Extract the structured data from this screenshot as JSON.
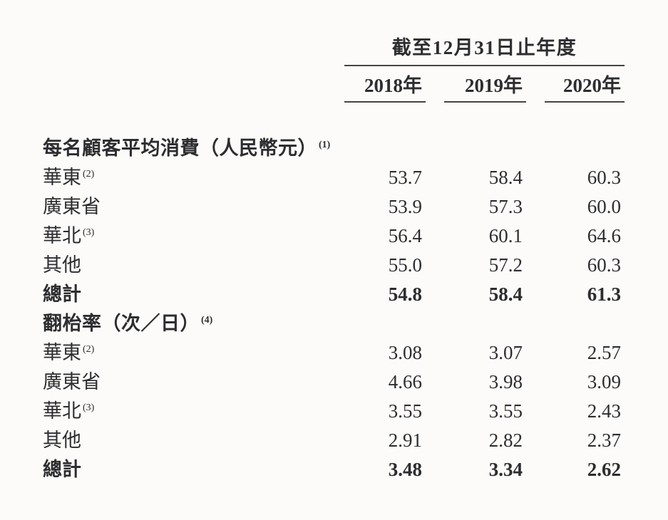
{
  "page": {
    "background": "#fcfbf9",
    "text_color": "#2d2d30",
    "rule_color": "#454548"
  },
  "table": {
    "period_header": "截至12月31日止年度",
    "year_columns": [
      "2018年",
      "2019年",
      "2020年"
    ],
    "rows": [
      {
        "label": "每名顧客平均消費（人民幣元）",
        "footnote": "(1)",
        "style": "section",
        "values": [
          "",
          "",
          ""
        ]
      },
      {
        "label": "華東",
        "footnote": "(2)",
        "style": "data",
        "values": [
          "53.7",
          "58.4",
          "60.3"
        ]
      },
      {
        "label": "廣東省",
        "footnote": "",
        "style": "data",
        "values": [
          "53.9",
          "57.3",
          "60.0"
        ]
      },
      {
        "label": "華北",
        "footnote": "(3)",
        "style": "data",
        "values": [
          "56.4",
          "60.1",
          "64.6"
        ]
      },
      {
        "label": "其他",
        "footnote": "",
        "style": "data",
        "values": [
          "55.0",
          "57.2",
          "60.3"
        ]
      },
      {
        "label": "總計",
        "footnote": "",
        "style": "total",
        "values": [
          "54.8",
          "58.4",
          "61.3"
        ]
      },
      {
        "label": "翻枱率（次／日）",
        "footnote": "(4)",
        "style": "section",
        "values": [
          "",
          "",
          ""
        ]
      },
      {
        "label": "華東",
        "footnote": "(2)",
        "style": "data",
        "values": [
          "3.08",
          "3.07",
          "2.57"
        ]
      },
      {
        "label": "廣東省",
        "footnote": "",
        "style": "data",
        "values": [
          "4.66",
          "3.98",
          "3.09"
        ]
      },
      {
        "label": "華北",
        "footnote": "(3)",
        "style": "data",
        "values": [
          "3.55",
          "3.55",
          "2.43"
        ]
      },
      {
        "label": "其他",
        "footnote": "",
        "style": "data",
        "values": [
          "2.91",
          "2.82",
          "2.37"
        ]
      },
      {
        "label": "總計",
        "footnote": "",
        "style": "total",
        "values": [
          "3.48",
          "3.34",
          "2.62"
        ]
      }
    ]
  }
}
